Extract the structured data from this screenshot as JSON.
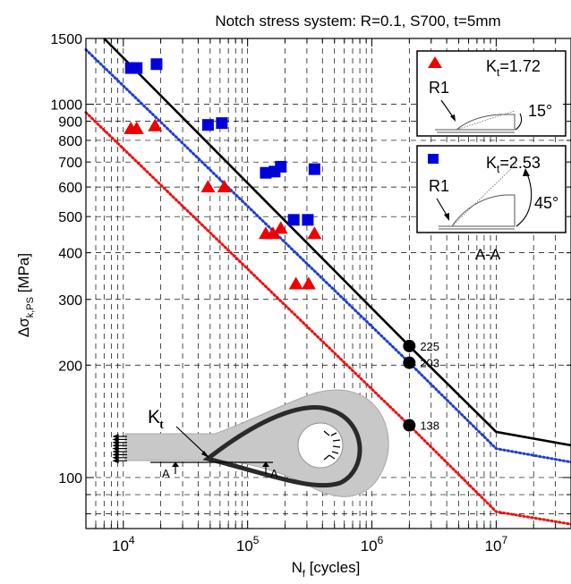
{
  "chart_data": {
    "type": "scatter",
    "title": "Notch stress system: R=0.1, S700, t=5mm",
    "xlabel_main": "N",
    "xlabel_sub": "f",
    "xlabel_tail": " [cycles]",
    "ylabel_main": "Δσ",
    "ylabel_sub": "k,PS",
    "ylabel_tail": " [MPa]",
    "x_scale": "log",
    "y_scale": "log",
    "xlim": [
      5000,
      40000000
    ],
    "ylim": [
      73,
      1500
    ],
    "grid": true,
    "x_ticks": [
      {
        "value": 10000,
        "base": "10",
        "exp": "4"
      },
      {
        "value": 100000,
        "base": "10",
        "exp": "5"
      },
      {
        "value": 1000000,
        "base": "10",
        "exp": "6"
      },
      {
        "value": 10000000,
        "base": "10",
        "exp": "7"
      }
    ],
    "y_ticks": [
      {
        "value": 100,
        "label": "100"
      },
      {
        "value": 200,
        "label": "200"
      },
      {
        "value": 300,
        "label": "300"
      },
      {
        "value": 400,
        "label": "400"
      },
      {
        "value": 500,
        "label": "500"
      },
      {
        "value": 600,
        "label": "600"
      },
      {
        "value": 700,
        "label": "700"
      },
      {
        "value": 800,
        "label": "800"
      },
      {
        "value": 900,
        "label": "900"
      },
      {
        "value": 1000,
        "label": "1000"
      },
      {
        "value": 1500,
        "label": "1500"
      }
    ],
    "series": [
      {
        "name": "Kt=1.72",
        "kt_base": "K",
        "kt_sub": "t",
        "kt_tail": "=1.72",
        "marker": "triangle",
        "color": "#ee0000",
        "points": [
          [
            11500,
            860
          ],
          [
            12800,
            860
          ],
          [
            18000,
            875
          ],
          [
            48000,
            600
          ],
          [
            65000,
            600
          ],
          [
            140000,
            450
          ],
          [
            160000,
            450
          ],
          [
            185000,
            465
          ],
          [
            245000,
            330
          ],
          [
            310000,
            330
          ],
          [
            345000,
            450
          ]
        ]
      },
      {
        "name": "Kt=2.53",
        "kt_base": "K",
        "kt_sub": "t",
        "kt_tail": "=2.53",
        "marker": "square",
        "color": "#0000dd",
        "points": [
          [
            11500,
            1250
          ],
          [
            12800,
            1250
          ],
          [
            18500,
            1280
          ],
          [
            48000,
            880
          ],
          [
            62000,
            890
          ],
          [
            140000,
            655
          ],
          [
            165000,
            660
          ],
          [
            185000,
            680
          ],
          [
            345000,
            670
          ],
          [
            235000,
            490
          ],
          [
            305000,
            490
          ]
        ]
      }
    ],
    "lines": [
      {
        "style": "solid",
        "color": "#000000",
        "points": [
          [
            7000,
            1500
          ],
          [
            2000000,
            225
          ],
          [
            10000000,
            132.5
          ],
          [
            40000000,
            122
          ]
        ]
      },
      {
        "style": "dotted",
        "color": "#1f3fd0",
        "points": [
          [
            5000,
            1400
          ],
          [
            2000000,
            203
          ],
          [
            10000000,
            119.5
          ],
          [
            40000000,
            110
          ]
        ]
      },
      {
        "style": "dotted",
        "color": "#ee1010",
        "points": [
          [
            5000,
            950
          ],
          [
            2000000,
            138
          ],
          [
            10000000,
            81
          ],
          [
            40000000,
            75
          ]
        ]
      }
    ],
    "fat_points": [
      {
        "x": 2000000,
        "y": 225,
        "label": "225"
      },
      {
        "x": 2000000,
        "y": 203,
        "label": "203"
      },
      {
        "x": 2000000,
        "y": 138,
        "label": "138"
      }
    ],
    "insets": [
      {
        "radius_label": "R1",
        "angle_label": "15°"
      },
      {
        "radius_label": "R1",
        "angle_label": "45°"
      }
    ],
    "section_label": "A-A",
    "specimen": {
      "kt_base": "K",
      "kt_sub": "t",
      "cut_left": "A",
      "cut_right": "A"
    }
  }
}
